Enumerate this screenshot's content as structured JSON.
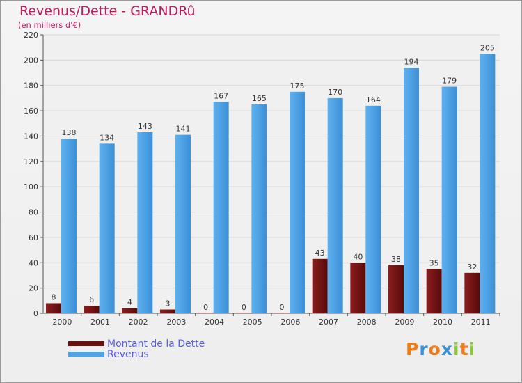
{
  "header": {
    "title": "Revenus/Dette - GRANDRû",
    "subtitle": "(en milliers d'€)"
  },
  "legend": {
    "items": [
      {
        "label": "Montant de la Dette",
        "color": "#6e0f0f"
      },
      {
        "label": "Revenus",
        "color": "#4fa3e6"
      }
    ]
  },
  "logo": {
    "letters": [
      {
        "ch": "P",
        "color": "#f07c1a"
      },
      {
        "ch": "r",
        "color": "#3b8fd9"
      },
      {
        "ch": "o",
        "color": "#f07c1a"
      },
      {
        "ch": "x",
        "color": "#3b8fd9"
      },
      {
        "ch": "i",
        "color": "#8dc63f"
      },
      {
        "ch": "t",
        "color": "#f07c1a"
      },
      {
        "ch": "i",
        "color": "#8dc63f"
      }
    ]
  },
  "chart_data": {
    "type": "bar",
    "title": "Revenus/Dette - GRANDRû",
    "subtitle": "(en milliers d'€)",
    "xlabel": "",
    "ylabel": "",
    "ylim": [
      0,
      220
    ],
    "yticks": [
      "0",
      "20",
      "40",
      "60",
      "80",
      "100",
      "120",
      "140",
      "160",
      "180",
      "200",
      "220"
    ],
    "grid": true,
    "legend_position": "bottom-left",
    "categories": [
      "2000",
      "2001",
      "2002",
      "2003",
      "2004",
      "2005",
      "2006",
      "2007",
      "2008",
      "2009",
      "2010",
      "2011"
    ],
    "series": [
      {
        "name": "Montant de la Dette",
        "color": "#6e0f0f",
        "values": [
          8,
          6,
          4,
          3,
          0,
          0,
          0,
          43,
          40,
          38,
          35,
          32
        ]
      },
      {
        "name": "Revenus",
        "color": "#4fa3e6",
        "values": [
          138,
          134,
          143,
          141,
          167,
          165,
          175,
          170,
          164,
          194,
          179,
          205
        ]
      }
    ]
  }
}
